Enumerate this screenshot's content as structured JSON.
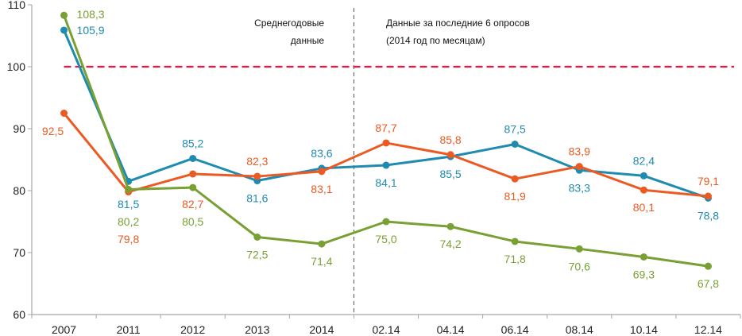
{
  "chart_data": {
    "type": "line",
    "title": "",
    "xlabel": "",
    "ylabel": "",
    "ylim": [
      60,
      110
    ],
    "yticks": [
      60,
      70,
      80,
      90,
      100,
      110
    ],
    "grid": false,
    "legend": "none",
    "categories": [
      "2007",
      "2011",
      "2012",
      "2013",
      "2014",
      "02.14",
      "04.14",
      "06.14",
      "08.14",
      "10.14",
      "12.14"
    ],
    "reference_line": {
      "value": 100,
      "color": "#e8193c",
      "style": "dashed"
    },
    "divider": {
      "after_category": "2014",
      "style": "dashed"
    },
    "annotations": {
      "left_section": [
        "Среднегодовые",
        "данные"
      ],
      "right_section": [
        "Данные за последние 6 опросов",
        "(2014 год по месяцам)"
      ]
    },
    "series": [
      {
        "name": "blue",
        "color": "#1f8bb0",
        "values": [
          105.9,
          81.5,
          85.2,
          81.6,
          83.6,
          84.1,
          85.5,
          87.5,
          83.3,
          82.4,
          78.8
        ],
        "labels": [
          "105,9",
          "81,5",
          "85,2",
          "81,6",
          "83,6",
          "84,1",
          "85,5",
          "87,5",
          "83,3",
          "82,4",
          "78,8"
        ],
        "label_pos": [
          "right",
          "below",
          "above",
          "below",
          "above",
          "below",
          "below",
          "above",
          "below",
          "above",
          "below"
        ]
      },
      {
        "name": "orange",
        "color": "#ec5a24",
        "values": [
          92.5,
          79.8,
          82.7,
          82.3,
          83.1,
          87.7,
          85.8,
          81.9,
          83.9,
          80.1,
          79.1
        ],
        "labels": [
          "92,5",
          "79,8",
          "82,7",
          "82,3",
          "83,1",
          "87,7",
          "85,8",
          "81,9",
          "83,9",
          "80,1",
          "79,1"
        ],
        "label_pos": [
          "below",
          "below3",
          "below",
          "above",
          "below",
          "above",
          "above",
          "below",
          "above",
          "below",
          "above"
        ]
      },
      {
        "name": "green",
        "color": "#79a032",
        "values": [
          108.3,
          80.2,
          80.5,
          72.5,
          71.4,
          75.0,
          74.2,
          71.8,
          70.6,
          69.3,
          67.8
        ],
        "labels": [
          "108,3",
          "80,2",
          "80,5",
          "72,5",
          "71,4",
          "75,0",
          "74,2",
          "71,8",
          "70,6",
          "69,3",
          "67,8"
        ],
        "label_pos": [
          "right",
          "below2",
          "below2",
          "below",
          "below",
          "below",
          "below",
          "below",
          "below",
          "below",
          "below"
        ]
      }
    ]
  }
}
